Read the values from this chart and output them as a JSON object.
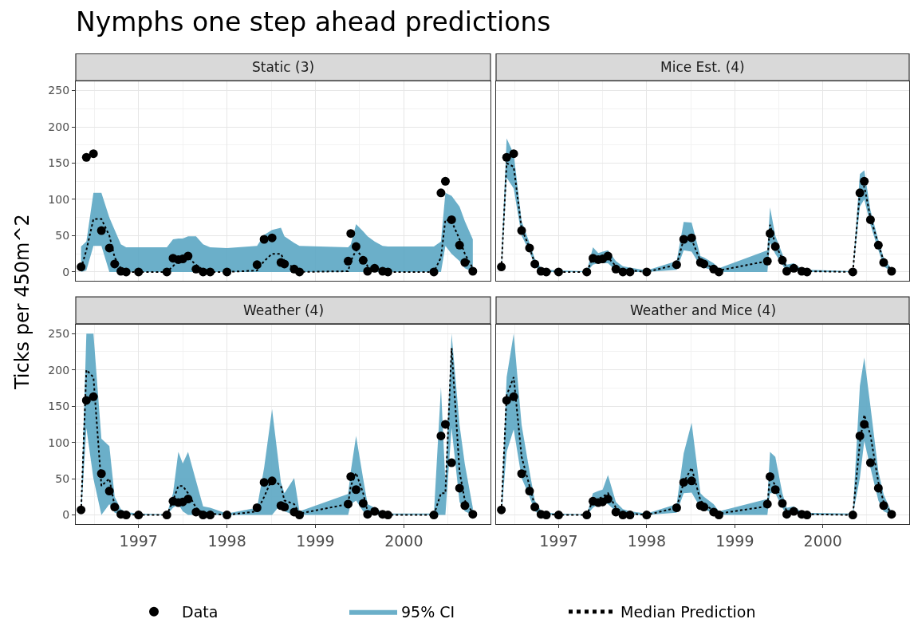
{
  "chart_data": [
    {
      "type": "line",
      "title": "Nymphs one step ahead predictions",
      "subtitle": "Static (3)",
      "ylabel": "Ticks per 450m^2",
      "annotations": [
        "95% CI"
      ],
      "xlim": [
        1996.29,
        2000.98
      ],
      "xticks": [
        1997,
        1998,
        1999,
        2000
      ],
      "ylim": [
        -12.5,
        262.5
      ],
      "yticks": [
        0,
        50,
        100,
        150,
        200,
        250
      ],
      "grid": true,
      "legend": "bottom",
      "tick_labels": "y",
      "x": [
        1996.35,
        1996.41,
        1996.49,
        1996.58,
        1996.67,
        1996.73,
        1996.8,
        1996.86,
        1997.0,
        1997.32,
        1997.39,
        1997.45,
        1997.5,
        1997.56,
        1997.65,
        1997.73,
        1997.81,
        1998.0,
        1998.34,
        1998.42,
        1998.51,
        1998.61,
        1998.65,
        1998.76,
        1998.82,
        1999.37,
        1999.4,
        1999.46,
        1999.54,
        1999.59,
        1999.67,
        1999.76,
        1999.82,
        2000.34,
        2000.42,
        2000.47,
        2000.54,
        2000.63,
        2000.69,
        2000.78
      ],
      "series": [
        {
          "name": "Median Prediction",
          "color": "#000000",
          "line_style": "dotted",
          "values": [
            5,
            30,
            73,
            73,
            50,
            20,
            5,
            0,
            0,
            0,
            8,
            15,
            18,
            20,
            10,
            3,
            0,
            0,
            2,
            15,
            25,
            25,
            15,
            5,
            0,
            1,
            15,
            30,
            20,
            8,
            5,
            1,
            0,
            0,
            20,
            72,
            70,
            45,
            25,
            5
          ],
          "lower": [
            0,
            2,
            36,
            36,
            0,
            0,
            0,
            0,
            0,
            0,
            0,
            0,
            0,
            0,
            0,
            0,
            0,
            0,
            0,
            0,
            0,
            0,
            0,
            0,
            0,
            0,
            0,
            0,
            0,
            0,
            0,
            0,
            0,
            0,
            0,
            36,
            25,
            15,
            5,
            0
          ],
          "upper": [
            35,
            42,
            109,
            109,
            75,
            58,
            38,
            34,
            34,
            34,
            45,
            46,
            46,
            49,
            49,
            38,
            34,
            33,
            36,
            51,
            58,
            61,
            49,
            40,
            36,
            34,
            38,
            66,
            56,
            49,
            42,
            36,
            35,
            35,
            42,
            109,
            105,
            90,
            70,
            45
          ]
        },
        {
          "name": "Data",
          "type": "scatter",
          "color": "#000000",
          "marker": "circle",
          "values": [
            7,
            158,
            163,
            57,
            33,
            11,
            1,
            0,
            0,
            0,
            19,
            17,
            18,
            22,
            4,
            0,
            0,
            0,
            10,
            45,
            47,
            13,
            11,
            4,
            0,
            15,
            53,
            35,
            16,
            1,
            5,
            1,
            0,
            0,
            109,
            125,
            72,
            37,
            13,
            1
          ]
        }
      ]
    },
    {
      "type": "line",
      "subtitle": "Mice Est. (4)",
      "xlim": [
        1996.29,
        2000.98
      ],
      "xticks": [
        1997,
        1998,
        1999,
        2000
      ],
      "ylim": [
        -12.5,
        262.5
      ],
      "yticks": [
        0,
        50,
        100,
        150,
        200,
        250
      ],
      "grid": true,
      "tick_labels": false,
      "x": [
        1996.35,
        1996.41,
        1996.49,
        1996.58,
        1996.67,
        1996.73,
        1996.8,
        1996.86,
        1997.0,
        1997.32,
        1997.39,
        1997.45,
        1997.5,
        1997.56,
        1997.65,
        1997.73,
        1997.81,
        1998.0,
        1998.34,
        1998.42,
        1998.51,
        1998.61,
        1998.65,
        1998.76,
        1998.82,
        1999.37,
        1999.4,
        1999.46,
        1999.54,
        1999.59,
        1999.67,
        1999.76,
        1999.82,
        2000.34,
        2000.42,
        2000.47,
        2000.54,
        2000.63,
        2000.69,
        2000.78
      ],
      "series": [
        {
          "name": "Median Prediction",
          "color": "#000000",
          "line_style": "dotted",
          "values": [
            5,
            150,
            145,
            60,
            33,
            12,
            3,
            1,
            0,
            0,
            20,
            18,
            18,
            20,
            8,
            3,
            2,
            0,
            10,
            45,
            45,
            15,
            12,
            5,
            2,
            15,
            65,
            38,
            18,
            5,
            6,
            2,
            1,
            0,
            110,
            118,
            75,
            38,
            15,
            2
          ],
          "lower": [
            0,
            130,
            115,
            50,
            28,
            8,
            0,
            0,
            0,
            0,
            10,
            12,
            12,
            12,
            2,
            0,
            0,
            0,
            3,
            30,
            28,
            8,
            6,
            2,
            0,
            0,
            40,
            25,
            10,
            0,
            2,
            0,
            0,
            0,
            90,
            100,
            65,
            30,
            8,
            0
          ],
          "upper": [
            10,
            184,
            163,
            70,
            40,
            18,
            6,
            3,
            2,
            1,
            34,
            26,
            28,
            30,
            15,
            8,
            6,
            2,
            15,
            69,
            68,
            22,
            20,
            12,
            5,
            30,
            89,
            50,
            25,
            10,
            12,
            4,
            3,
            1,
            135,
            140,
            85,
            44,
            20,
            4
          ]
        },
        {
          "name": "Data",
          "type": "scatter",
          "color": "#000000",
          "marker": "circle",
          "values": [
            7,
            158,
            163,
            57,
            33,
            11,
            1,
            0,
            0,
            0,
            19,
            17,
            18,
            22,
            4,
            0,
            0,
            0,
            10,
            45,
            47,
            13,
            11,
            4,
            0,
            15,
            53,
            35,
            16,
            1,
            5,
            1,
            0,
            0,
            109,
            125,
            72,
            37,
            13,
            1
          ]
        }
      ]
    },
    {
      "type": "line",
      "subtitle": "Weather (4)",
      "xlim": [
        1996.29,
        2000.98
      ],
      "xticks": [
        1997,
        1998,
        1999,
        2000
      ],
      "ylim": [
        -12.5,
        262.5
      ],
      "yticks": [
        0,
        50,
        100,
        150,
        200,
        250
      ],
      "grid": true,
      "x": [
        1996.35,
        1996.41,
        1996.49,
        1996.58,
        1996.67,
        1996.73,
        1996.8,
        1996.86,
        1997.0,
        1997.32,
        1997.39,
        1997.45,
        1997.5,
        1997.56,
        1997.65,
        1997.73,
        1997.81,
        1998.0,
        1998.34,
        1998.42,
        1998.51,
        1998.61,
        1998.65,
        1998.76,
        1998.82,
        1999.37,
        1999.4,
        1999.46,
        1999.54,
        1999.59,
        1999.67,
        1999.76,
        1999.82,
        2000.34,
        2000.42,
        2000.47,
        2000.54,
        2000.63,
        2000.69,
        2000.78
      ],
      "series": [
        {
          "name": "Median Prediction",
          "color": "#000000",
          "line_style": "dotted",
          "values": [
            5,
            200,
            190,
            40,
            50,
            12,
            3,
            1,
            0,
            0,
            20,
            40,
            40,
            30,
            10,
            3,
            2,
            0,
            5,
            25,
            50,
            40,
            20,
            15,
            2,
            15,
            40,
            58,
            30,
            5,
            3,
            1,
            0,
            0,
            30,
            30,
            230,
            60,
            20,
            3
          ],
          "lower": [
            0,
            120,
            50,
            0,
            15,
            3,
            0,
            0,
            0,
            0,
            10,
            15,
            5,
            0,
            0,
            0,
            0,
            0,
            0,
            0,
            0,
            15,
            5,
            0,
            0,
            0,
            15,
            20,
            5,
            0,
            0,
            0,
            0,
            0,
            0,
            0,
            120,
            18,
            5,
            0
          ],
          "upper": [
            10,
            250,
            250,
            105,
            95,
            25,
            8,
            4,
            2,
            1,
            30,
            87,
            71,
            87,
            47,
            12,
            10,
            2,
            10,
            65,
            146,
            45,
            30,
            51,
            5,
            29,
            60,
            109,
            50,
            15,
            10,
            4,
            2,
            2,
            176,
            45,
            250,
            124,
            70,
            10
          ]
        },
        {
          "name": "Data",
          "type": "scatter",
          "color": "#000000",
          "marker": "circle",
          "values": [
            7,
            158,
            163,
            57,
            33,
            11,
            1,
            0,
            0,
            0,
            19,
            17,
            18,
            22,
            4,
            0,
            0,
            0,
            10,
            45,
            47,
            13,
            11,
            4,
            0,
            15,
            53,
            35,
            16,
            1,
            5,
            1,
            0,
            0,
            109,
            125,
            72,
            37,
            13,
            1
          ]
        }
      ]
    },
    {
      "type": "line",
      "subtitle": "Weather and Mice (4)",
      "xlim": [
        1996.29,
        2000.98
      ],
      "xticks": [
        1997,
        1998,
        1999,
        2000
      ],
      "ylim": [
        -12.5,
        262.5
      ],
      "yticks": [
        0,
        50,
        100,
        150,
        200,
        250
      ],
      "grid": true,
      "tick_labels": "x",
      "x": [
        1996.35,
        1996.41,
        1996.49,
        1996.58,
        1996.67,
        1996.73,
        1996.8,
        1996.86,
        1997.0,
        1997.32,
        1997.39,
        1997.45,
        1997.5,
        1997.56,
        1997.65,
        1997.73,
        1997.81,
        1998.0,
        1998.34,
        1998.42,
        1998.51,
        1998.61,
        1998.65,
        1998.76,
        1998.82,
        1999.37,
        1999.4,
        1999.46,
        1999.54,
        1999.59,
        1999.67,
        1999.76,
        1999.82,
        2000.34,
        2000.42,
        2000.47,
        2000.54,
        2000.63,
        2000.69,
        2000.78
      ],
      "series": [
        {
          "name": "Median Prediction",
          "color": "#000000",
          "line_style": "dotted",
          "values": [
            5,
            165,
            190,
            80,
            40,
            12,
            3,
            1,
            0,
            0,
            20,
            22,
            25,
            30,
            10,
            3,
            2,
            0,
            10,
            45,
            65,
            20,
            15,
            6,
            2,
            12,
            55,
            40,
            20,
            5,
            6,
            2,
            1,
            0,
            100,
            138,
            110,
            45,
            18,
            2
          ],
          "lower": [
            0,
            87,
            118,
            51,
            25,
            5,
            0,
            0,
            0,
            0,
            10,
            15,
            18,
            15,
            5,
            0,
            0,
            0,
            3,
            30,
            31,
            10,
            8,
            2,
            0,
            0,
            30,
            30,
            10,
            0,
            2,
            0,
            0,
            0,
            51,
            102,
            65,
            20,
            5,
            0
          ],
          "upper": [
            10,
            190,
            250,
            124,
            60,
            20,
            6,
            3,
            2,
            1,
            30,
            33,
            35,
            55,
            18,
            8,
            5,
            2,
            15,
            85,
            127,
            30,
            25,
            15,
            5,
            22,
            87,
            80,
            30,
            10,
            12,
            4,
            3,
            2,
            178,
            217,
            150,
            60,
            28,
            4
          ]
        },
        {
          "name": "Data",
          "type": "scatter",
          "color": "#000000",
          "marker": "circle",
          "values": [
            7,
            158,
            163,
            57,
            33,
            11,
            1,
            0,
            0,
            0,
            19,
            17,
            18,
            22,
            4,
            0,
            0,
            0,
            10,
            45,
            47,
            13,
            11,
            4,
            0,
            15,
            53,
            35,
            16,
            1,
            5,
            1,
            0,
            0,
            109,
            125,
            72,
            37,
            13,
            1
          ]
        }
      ]
    }
  ]
}
